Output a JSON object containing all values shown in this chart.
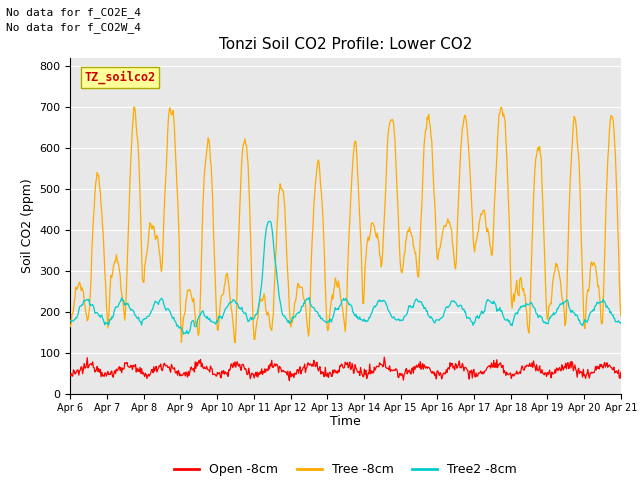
{
  "title": "Tonzi Soil CO2 Profile: Lower CO2",
  "ylabel": "Soil CO2 (ppm)",
  "xlabel": "Time",
  "ylim": [
    0,
    820
  ],
  "yticks": [
    0,
    100,
    200,
    300,
    400,
    500,
    600,
    700,
    800
  ],
  "bg_color": "#e8e8e8",
  "annotations": [
    "No data for f_CO2E_4",
    "No data for f_CO2W_4"
  ],
  "tag_label": "TZ_soilco2",
  "tag_color": "#ffff99",
  "tag_text_color": "#cc0000",
  "legend_labels": [
    "Open -8cm",
    "Tree -8cm",
    "Tree2 -8cm"
  ],
  "line_colors": {
    "open": "#ff0000",
    "tree": "#ffaa00",
    "tree2": "#00cccc"
  },
  "xtick_labels": [
    "Apr 6",
    "Apr 7",
    "Apr 8",
    "Apr 9",
    "Apr 10",
    "Apr 11",
    "Apr 12",
    "Apr 13",
    "Apr 14",
    "Apr 15",
    "Apr 16",
    "Apr 17",
    "Apr 18",
    "Apr 19",
    "Apr 20",
    "Apr 21"
  ],
  "figsize": [
    6.4,
    4.8
  ],
  "dpi": 100
}
